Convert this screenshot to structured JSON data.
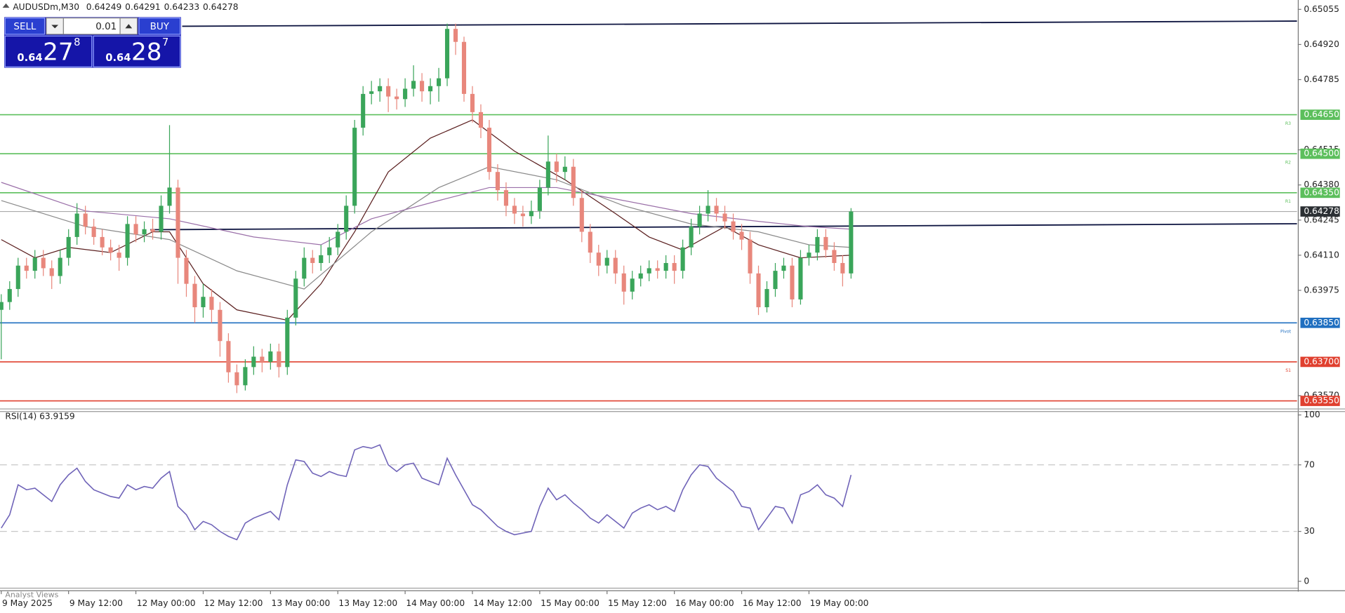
{
  "header": {
    "symbol": "AUDUSDm,M30",
    "ohlc": [
      "0.64249",
      "0.64291",
      "0.64233",
      "0.64278"
    ]
  },
  "trade_panel": {
    "sell": "SELL",
    "buy": "BUY",
    "lot": "0.01",
    "bid": [
      "0.64",
      "27",
      "8"
    ],
    "ask": [
      "0.64",
      "28",
      "7"
    ]
  },
  "footer": "Analyst Views",
  "chart_data": {
    "type": "candlestick",
    "xlim": [
      -0.15,
      154
    ],
    "ylim": [
      0.63519,
      0.65091
    ],
    "xticks": [
      {
        "value": 0,
        "label": "9 May 2025"
      },
      {
        "value": 8,
        "label": "9 May 12:00"
      },
      {
        "value": 16,
        "label": "12 May 00:00"
      },
      {
        "value": 24,
        "label": "12 May 12:00"
      },
      {
        "value": 32,
        "label": "13 May 00:00"
      },
      {
        "value": 40,
        "label": "13 May 12:00"
      },
      {
        "value": 48,
        "label": "14 May 00:00"
      },
      {
        "value": 56,
        "label": "14 May 12:00"
      },
      {
        "value": 64,
        "label": "15 May 00:00"
      },
      {
        "value": 72,
        "label": "15 May 12:00"
      },
      {
        "value": 80,
        "label": "16 May 00:00"
      },
      {
        "value": 88,
        "label": "16 May 12:00"
      },
      {
        "value": 96,
        "label": "19 May 00:00"
      }
    ],
    "yticks": [
      0.65055,
      {
        "value": 0.6492,
        "label": "0.64920"
      },
      0.64785,
      0.64515,
      {
        "value": 0.6438,
        "label": "0.64380"
      },
      0.64245,
      {
        "value": 0.6411,
        "label": "0.64110"
      },
      0.63975,
      {
        "value": 0.6357,
        "label": "0.63570"
      }
    ],
    "up_color": "#3aa55a",
    "down_color": "#e8877c",
    "candles": {
      "open": [
        0.639,
        0.6393,
        0.6398,
        0.6407,
        0.6405,
        0.641,
        0.6406,
        0.6403,
        0.641,
        0.6418,
        0.6427,
        0.6422,
        0.6418,
        0.6414,
        0.6412,
        0.641,
        0.6423,
        0.6419,
        0.6421,
        0.642,
        0.643,
        0.6437,
        0.641,
        0.64,
        0.6391,
        0.6395,
        0.639,
        0.6378,
        0.6366,
        0.6361,
        0.6368,
        0.6372,
        0.637,
        0.6374,
        0.6368,
        0.6387,
        0.6402,
        0.641,
        0.6408,
        0.6411,
        0.6414,
        0.642,
        0.643,
        0.646,
        0.6473,
        0.6474,
        0.6476,
        0.6472,
        0.6471,
        0.6475,
        0.6478,
        0.6474,
        0.6476,
        0.6479,
        0.6498,
        0.6493,
        0.6473,
        0.6466,
        0.646,
        0.6443,
        0.6436,
        0.643,
        0.6427,
        0.6426,
        0.6428,
        0.6437,
        0.6447,
        0.6443,
        0.6445,
        0.6433,
        0.642,
        0.6412,
        0.6407,
        0.641,
        0.6404,
        0.6397,
        0.6402,
        0.6404,
        0.6406,
        0.6405,
        0.6408,
        0.6405,
        0.6414,
        0.6422,
        0.6427,
        0.643,
        0.6427,
        0.6424,
        0.642,
        0.6417,
        0.6404,
        0.6391,
        0.6398,
        0.6405,
        0.6407,
        0.6394,
        0.641,
        0.6412,
        0.6418,
        0.6413,
        0.6408,
        0.6404
      ],
      "high": [
        0.6396,
        0.6401,
        0.641,
        0.641,
        0.6413,
        0.6413,
        0.6409,
        0.6413,
        0.6421,
        0.6431,
        0.643,
        0.6425,
        0.6421,
        0.6417,
        0.6415,
        0.6426,
        0.6426,
        0.6424,
        0.6425,
        0.6434,
        0.6461,
        0.644,
        0.6413,
        0.6403,
        0.64,
        0.6398,
        0.6393,
        0.6381,
        0.6369,
        0.6371,
        0.6376,
        0.6375,
        0.6377,
        0.6377,
        0.639,
        0.6405,
        0.6414,
        0.6413,
        0.6415,
        0.6418,
        0.6423,
        0.6434,
        0.6463,
        0.6476,
        0.6478,
        0.6479,
        0.6479,
        0.6475,
        0.6479,
        0.6484,
        0.6481,
        0.6479,
        0.6483,
        0.65,
        0.65,
        0.6495,
        0.6476,
        0.6469,
        0.6463,
        0.6446,
        0.6439,
        0.6433,
        0.643,
        0.6432,
        0.644,
        0.6457,
        0.645,
        0.6449,
        0.6448,
        0.6436,
        0.6423,
        0.6415,
        0.6413,
        0.6413,
        0.6407,
        0.6405,
        0.6407,
        0.6409,
        0.6409,
        0.6411,
        0.6411,
        0.6417,
        0.6425,
        0.643,
        0.6436,
        0.6433,
        0.643,
        0.6427,
        0.6423,
        0.642,
        0.6407,
        0.6401,
        0.6408,
        0.641,
        0.641,
        0.6413,
        0.6415,
        0.6421,
        0.6421,
        0.6416,
        0.6411,
        0.64291
      ],
      "low": [
        0.6371,
        0.639,
        0.6395,
        0.6402,
        0.6402,
        0.6403,
        0.6398,
        0.64,
        0.6407,
        0.6415,
        0.6419,
        0.6415,
        0.6411,
        0.6409,
        0.6405,
        0.6407,
        0.6416,
        0.6416,
        0.6417,
        0.6417,
        0.6427,
        0.64,
        0.6395,
        0.6385,
        0.6387,
        0.6385,
        0.6372,
        0.6362,
        0.6358,
        0.6359,
        0.6365,
        0.6366,
        0.6367,
        0.6364,
        0.6365,
        0.6384,
        0.6399,
        0.6404,
        0.6405,
        0.6408,
        0.6411,
        0.6417,
        0.6427,
        0.6457,
        0.6469,
        0.647,
        0.6466,
        0.6467,
        0.6468,
        0.6472,
        0.647,
        0.6469,
        0.647,
        0.6476,
        0.6488,
        0.647,
        0.6462,
        0.6456,
        0.644,
        0.6432,
        0.6426,
        0.6423,
        0.6422,
        0.6423,
        0.6425,
        0.6434,
        0.6439,
        0.644,
        0.643,
        0.6416,
        0.6408,
        0.6403,
        0.6404,
        0.64,
        0.6392,
        0.6394,
        0.6399,
        0.6401,
        0.6402,
        0.6402,
        0.64,
        0.6402,
        0.6411,
        0.6419,
        0.6424,
        0.6424,
        0.6421,
        0.6417,
        0.6413,
        0.64,
        0.6388,
        0.6389,
        0.6395,
        0.6402,
        0.6391,
        0.6392,
        0.6407,
        0.6409,
        0.641,
        0.6405,
        0.6399,
        0.6402
      ],
      "close": [
        0.6393,
        0.6398,
        0.6407,
        0.6405,
        0.641,
        0.6406,
        0.6403,
        0.641,
        0.6418,
        0.6427,
        0.6422,
        0.6418,
        0.6414,
        0.6412,
        0.641,
        0.6423,
        0.6419,
        0.6421,
        0.642,
        0.643,
        0.6437,
        0.641,
        0.64,
        0.6391,
        0.6395,
        0.639,
        0.6378,
        0.6366,
        0.6361,
        0.6368,
        0.6372,
        0.637,
        0.6374,
        0.6368,
        0.6387,
        0.6402,
        0.641,
        0.6408,
        0.6411,
        0.6414,
        0.642,
        0.643,
        0.646,
        0.6473,
        0.6474,
        0.6476,
        0.6472,
        0.6471,
        0.6475,
        0.6478,
        0.6474,
        0.6476,
        0.6479,
        0.6498,
        0.6493,
        0.6473,
        0.6466,
        0.646,
        0.6443,
        0.6436,
        0.643,
        0.6427,
        0.6426,
        0.6428,
        0.6437,
        0.6447,
        0.6443,
        0.6445,
        0.6433,
        0.642,
        0.6412,
        0.6407,
        0.641,
        0.6404,
        0.6397,
        0.6402,
        0.6404,
        0.6406,
        0.6405,
        0.6408,
        0.6405,
        0.6414,
        0.6422,
        0.6427,
        0.643,
        0.6427,
        0.6424,
        0.642,
        0.6417,
        0.6404,
        0.6391,
        0.6398,
        0.6405,
        0.6407,
        0.6394,
        0.641,
        0.6412,
        0.6418,
        0.6413,
        0.6408,
        0.6404,
        0.64278
      ]
    },
    "moving_averages": [
      {
        "color": "#5a1e1e",
        "x": [
          0,
          4,
          8,
          13,
          18,
          20,
          24,
          28,
          34,
          38,
          42,
          46,
          51,
          56,
          61,
          67,
          73,
          77,
          81,
          86,
          90,
          95,
          101
        ],
        "values": [
          0.6417,
          0.641,
          0.6414,
          0.6412,
          0.642,
          0.642,
          0.64,
          0.639,
          0.6386,
          0.64,
          0.642,
          0.6443,
          0.6456,
          0.6463,
          0.6451,
          0.644,
          0.6427,
          0.6418,
          0.6413,
          0.6422,
          0.6415,
          0.641,
          0.6411
        ]
      },
      {
        "color": "#8a8a8a",
        "x": [
          0,
          10,
          20,
          28,
          36,
          44,
          52,
          58,
          66,
          74,
          82,
          90,
          96,
          101
        ],
        "values": [
          0.6432,
          0.6422,
          0.6417,
          0.6405,
          0.6398,
          0.642,
          0.6437,
          0.6445,
          0.644,
          0.643,
          0.6423,
          0.642,
          0.6415,
          0.6414
        ]
      },
      {
        "color": "#9a6fa8",
        "x": [
          0,
          10,
          20,
          30,
          38,
          44,
          52,
          58,
          66,
          74,
          82,
          90,
          96,
          101
        ],
        "values": [
          0.6439,
          0.6428,
          0.6425,
          0.6418,
          0.6415,
          0.6425,
          0.6432,
          0.6437,
          0.6437,
          0.6432,
          0.6427,
          0.6424,
          0.6422,
          0.6421
        ]
      }
    ],
    "trendlines": [
      {
        "color": "#0d1440",
        "x": [
          21.5,
          154
        ],
        "y": [
          0.6499,
          0.6501
        ]
      },
      {
        "color": "#0d1440",
        "x": [
          17.7,
          154
        ],
        "y": [
          0.64208,
          0.64231
        ]
      }
    ],
    "levels": [
      {
        "label": "R3",
        "value": 0.6465,
        "value_label": "0.64650",
        "color": "#5cbf5c"
      },
      {
        "label": "R2",
        "value": 0.645,
        "value_label": "0.64500",
        "color": "#5cbf5c"
      },
      {
        "label": "R1",
        "value": 0.6435,
        "value_label": "0.64350",
        "color": "#5cbf5c"
      },
      {
        "label": "Pivot",
        "value": 0.6385,
        "value_label": "0.63850",
        "color": "#1f6fc0"
      },
      {
        "label": "S1",
        "value": 0.637,
        "value_label": "0.63700",
        "color": "#e0402f"
      },
      {
        "value": 0.6355,
        "value_label": "0.63550",
        "color": "#e0402f"
      }
    ],
    "current_price": 0.64278,
    "rsi": {
      "label": "RSI(14) 63.9159",
      "color": "#6f63b8",
      "ylim": [
        0,
        100
      ],
      "yticks": [
        0,
        30,
        70,
        100
      ],
      "levels": [
        30,
        70
      ],
      "values": [
        32,
        40,
        58,
        55,
        56,
        52,
        48,
        58,
        64,
        68,
        60,
        55,
        53,
        51,
        50,
        58,
        55,
        57,
        56,
        62,
        66,
        45,
        40,
        31,
        36,
        34,
        30,
        27,
        25,
        35,
        38,
        40,
        42,
        37,
        58,
        73,
        72,
        65,
        63,
        66,
        64,
        63,
        79,
        81,
        80,
        82,
        70,
        66,
        70,
        71,
        62,
        60,
        58,
        74,
        64,
        55,
        46,
        43,
        38,
        33,
        30,
        28,
        29,
        30,
        45,
        56,
        49,
        52,
        47,
        43,
        38,
        35,
        40,
        36,
        32,
        41,
        44,
        46,
        43,
        45,
        42,
        55,
        64,
        70,
        69,
        62,
        58,
        54,
        45,
        44,
        31,
        38,
        45,
        44,
        35,
        52,
        54,
        58,
        52,
        50,
        45,
        63.9159
      ]
    }
  }
}
